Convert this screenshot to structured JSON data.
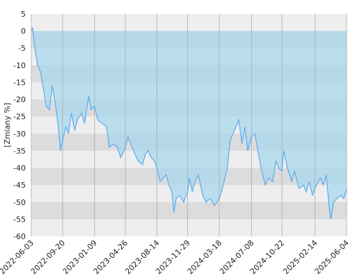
{
  "chart_data": {
    "type": "area",
    "y_label": "[Zmiany %]",
    "color": "#5aaaf0",
    "fill": "#a8d8ee",
    "grid": true,
    "xlim": [
      "2022-06-03",
      "2025-06-04"
    ],
    "xticks": [
      "2022-06-03",
      "2022-09-20",
      "2023-01-09",
      "2023-04-26",
      "2023-08-14",
      "2023-11-29",
      "2024-03-18",
      "2024-07-08",
      "2024-10-22",
      "2025-02-14",
      "2025-06-04"
    ],
    "ylim": [
      -60,
      5
    ],
    "yticks": [
      5,
      0,
      -5,
      -10,
      -15,
      -20,
      -25,
      -30,
      -35,
      -40,
      -45,
      -50,
      -55,
      -60
    ],
    "x": [
      "2022-06-03",
      "2022-06-07",
      "2022-06-15",
      "2022-06-25",
      "2022-07-05",
      "2022-07-15",
      "2022-07-25",
      "2022-08-05",
      "2022-08-15",
      "2022-08-25",
      "2022-09-05",
      "2022-09-12",
      "2022-09-20",
      "2022-10-01",
      "2022-10-10",
      "2022-10-20",
      "2022-11-01",
      "2022-11-10",
      "2022-11-25",
      "2022-12-05",
      "2022-12-20",
      "2022-12-28",
      "2023-01-09",
      "2023-01-20",
      "2023-02-05",
      "2023-02-20",
      "2023-03-01",
      "2023-03-15",
      "2023-03-30",
      "2023-04-10",
      "2023-04-26",
      "2023-05-05",
      "2023-05-15",
      "2023-05-30",
      "2023-06-10",
      "2023-06-25",
      "2023-07-05",
      "2023-07-15",
      "2023-07-25",
      "2023-08-05",
      "2023-08-14",
      "2023-08-25",
      "2023-09-05",
      "2023-09-15",
      "2023-09-25",
      "2023-10-05",
      "2023-10-12",
      "2023-10-20",
      "2023-11-01",
      "2023-11-15",
      "2023-11-29",
      "2023-12-05",
      "2023-12-15",
      "2023-12-25",
      "2024-01-05",
      "2024-01-20",
      "2024-02-01",
      "2024-02-15",
      "2024-03-01",
      "2024-03-18",
      "2024-04-01",
      "2024-04-15",
      "2024-04-25",
      "2024-05-10",
      "2024-05-25",
      "2024-06-05",
      "2024-06-15",
      "2024-06-25",
      "2024-07-08",
      "2024-07-20",
      "2024-07-30",
      "2024-08-10",
      "2024-08-25",
      "2024-09-05",
      "2024-09-20",
      "2024-10-01",
      "2024-10-10",
      "2024-10-22",
      "2024-10-28",
      "2024-11-10",
      "2024-11-25",
      "2024-12-05",
      "2024-12-20",
      "2025-01-05",
      "2025-01-15",
      "2025-01-25",
      "2025-02-05",
      "2025-02-14",
      "2025-02-25",
      "2025-03-05",
      "2025-03-15",
      "2025-03-25",
      "2025-04-05",
      "2025-04-10",
      "2025-04-20",
      "2025-05-01",
      "2025-05-15",
      "2025-05-25",
      "2025-06-04"
    ],
    "values": [
      0,
      1,
      -5,
      -10,
      -12,
      -17,
      -22,
      -23,
      -16,
      -21,
      -28,
      -35,
      -32,
      -28,
      -30,
      -24,
      -29,
      -26,
      -24,
      -27,
      -19,
      -23,
      -22,
      -26,
      -27,
      -28,
      -34,
      -33,
      -34,
      -37,
      -34,
      -31,
      -33,
      -36,
      -38,
      -39,
      -36,
      -35,
      -37,
      -38,
      -40,
      -44,
      -43,
      -42,
      -45,
      -47,
      -53,
      -49,
      -48,
      -50,
      -47,
      -43,
      -47,
      -44,
      -42,
      -48,
      -50,
      -49,
      -51,
      -49,
      -45,
      -40,
      -32,
      -29,
      -26,
      -33,
      -28,
      -35,
      -31,
      -30,
      -35,
      -40,
      -45,
      -43,
      -44,
      -38,
      -40,
      -41,
      -35,
      -40,
      -44,
      -41,
      -46,
      -45,
      -47,
      -44,
      -48,
      -46,
      -44,
      -43,
      -45,
      -42,
      -52,
      -55,
      -50,
      -49,
      -48,
      -49,
      -46
    ]
  }
}
